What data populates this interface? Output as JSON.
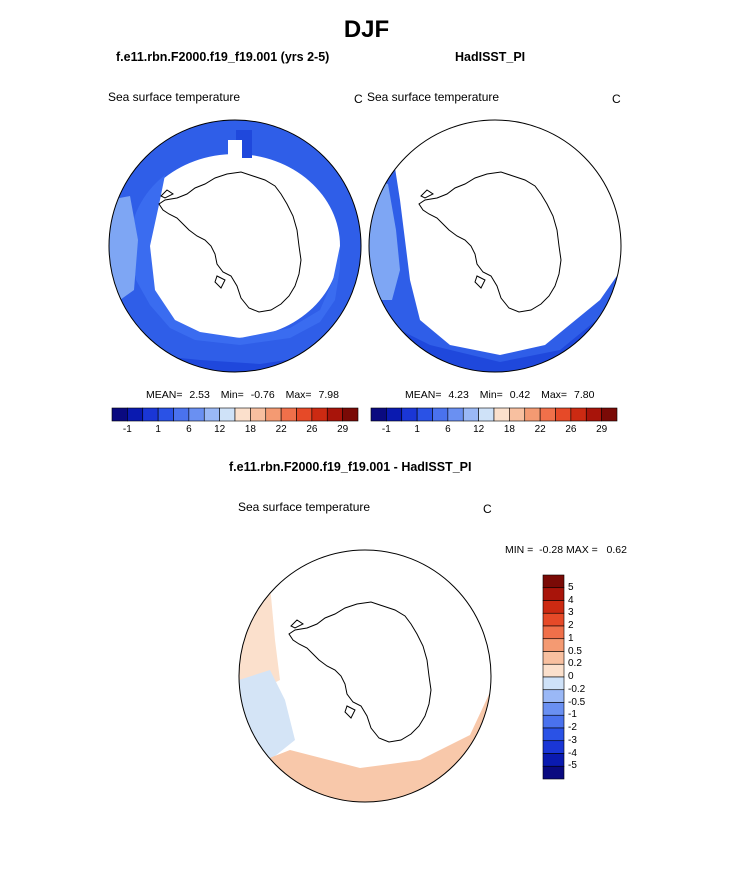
{
  "season": "DJF",
  "panels": {
    "model": {
      "case_title": "f.e11.rbn.F2000.f19_f19.001 (yrs 2-5)",
      "variable": "Sea surface temperature",
      "units": "C",
      "stats": {
        "mean_label": "MEAN=",
        "mean": "2.53",
        "min_label": "Min=",
        "min": "-0.76",
        "max_label": "Max=",
        "max": "7.98"
      }
    },
    "obs": {
      "case_title": "HadISST_PI",
      "variable": "Sea surface temperature",
      "units": "C",
      "stats": {
        "mean_label": "MEAN=",
        "mean": "4.23",
        "min_label": "Min=",
        "min": "0.42",
        "max_label": "Max=",
        "max": "7.80"
      }
    },
    "diff": {
      "case_title": "f.e11.rbn.F2000.f19_f19.001 - HadISST_PI",
      "variable": "Sea surface temperature",
      "units": "C",
      "minmax_text": "MIN =  -0.28 MAX =   0.62"
    }
  },
  "colorbar_abs": {
    "colors": [
      "#0a0a80",
      "#0a1ab0",
      "#1a36d6",
      "#2a52e6",
      "#4a72ee",
      "#6a90f2",
      "#9ab8f6",
      "#cfe2f8",
      "#fbe0cc",
      "#f8c0a0",
      "#f49a72",
      "#f0704a",
      "#e64a28",
      "#cc2a12",
      "#a8140a",
      "#7a0a06"
    ],
    "tick_labels": [
      "-1",
      "1",
      "6",
      "12",
      "18",
      "22",
      "26",
      "29"
    ]
  },
  "colorbar_diff": {
    "colors": [
      "#0a0a80",
      "#0a1ab0",
      "#1a36d6",
      "#2a52e6",
      "#4a72ee",
      "#6a90f2",
      "#9ab8f6",
      "#cfe2f8",
      "#fbe0cc",
      "#f8c0a0",
      "#f49a72",
      "#f0704a",
      "#e64a28",
      "#cc2a12",
      "#a8140a",
      "#7a0a06"
    ],
    "tick_labels": [
      "5",
      "4",
      "3",
      "2",
      "1",
      "0.5",
      "0.2",
      "0",
      "-0.2",
      "-0.5",
      "-1",
      "-2",
      "-3",
      "-4",
      "-5"
    ]
  }
}
